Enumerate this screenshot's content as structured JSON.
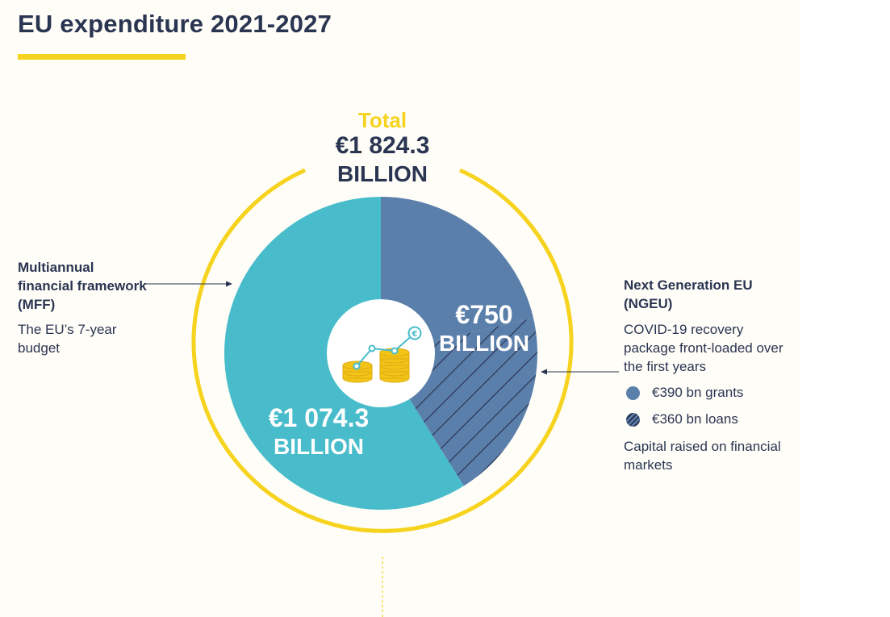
{
  "header": {
    "title": "EU expenditure 2021-2027"
  },
  "total": {
    "label": "Total",
    "value": "€1 824.3",
    "unit": "BILLION"
  },
  "mff": {
    "title": "Multiannual financial framework (MFF)",
    "description": "The EU’s 7-year budget",
    "value_label": "€1 074.3",
    "unit_label": "BILLION"
  },
  "ngeu": {
    "title": "Next Generation EU (NGEU)",
    "description": "COVID-19 recovery package front-loaded over the first years",
    "value_label": "€750",
    "unit_label": "BILLION",
    "legend": [
      {
        "label": "€390 bn grants",
        "style": "solid"
      },
      {
        "label": "€360 bn loans",
        "style": "hatched"
      }
    ],
    "note": "Capital raised on financial markets"
  },
  "icons": {
    "center": "coins-growth-euro-icon"
  },
  "colors": {
    "mff": "#48bccb",
    "ngeu": "#5b7fab",
    "hatch": "#2a3552",
    "ring": "#f6d31e",
    "text": "#2a3552",
    "background": "#fffdf7"
  },
  "chart_data": {
    "type": "pie",
    "title": "EU expenditure 2021-2027",
    "total": 1824.3,
    "unit": "€ billion",
    "slices": [
      {
        "name": "Multiannual financial framework (MFF)",
        "value": 1074.3,
        "color": "#48bccb"
      },
      {
        "name": "Next Generation EU (NGEU)",
        "value": 750,
        "color": "#5b7fab",
        "components": [
          {
            "name": "grants",
            "value": 390,
            "pattern": "solid"
          },
          {
            "name": "loans",
            "value": 360,
            "pattern": "hatched"
          }
        ]
      }
    ]
  }
}
